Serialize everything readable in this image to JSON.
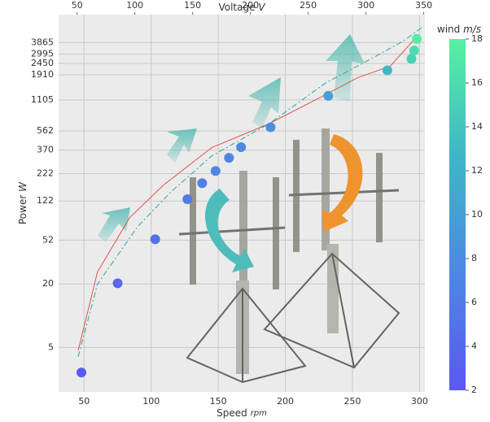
{
  "chart_data": {
    "type": "scatter",
    "x_label": "Speed",
    "x_unit": "rpm",
    "x2_label": "Voltage",
    "x2_unit": "V",
    "y_label": "Power",
    "y_unit": "W",
    "colorbar_label": "wind",
    "colorbar_unit": "m/s",
    "xlim": [
      31,
      304
    ],
    "xticks": [
      50,
      100,
      150,
      200,
      250,
      300
    ],
    "x2lim": [
      34,
      351
    ],
    "x2ticks": [
      50,
      100,
      150,
      200,
      250,
      300,
      350
    ],
    "ylim": [
      1.9,
      7100
    ],
    "yscale": "log",
    "yticks": [
      5,
      20,
      52,
      122,
      222,
      370,
      562,
      1105,
      1910,
      2450,
      2995,
      3865
    ],
    "clim": [
      2,
      18
    ],
    "cticks": [
      2,
      4,
      6,
      8,
      10,
      12,
      14,
      16,
      18
    ],
    "colormap": [
      "#5b58f0",
      "#4d88e2",
      "#3fb5c8",
      "#56f2a0"
    ],
    "grid": true,
    "x": [
      48,
      75,
      103,
      127,
      138,
      148,
      158,
      167,
      189,
      232,
      276,
      294,
      296,
      298
    ],
    "values": [
      2.9,
      20.3,
      53,
      127,
      180,
      235,
      313,
      395,
      610,
      1208,
      2110,
      2710,
      3245,
      4180
    ],
    "wind": [
      2.5,
      4,
      5,
      6,
      6.5,
      7,
      7.2,
      7.5,
      8,
      10,
      13,
      15,
      16,
      17.5
    ],
    "lines": [
      {
        "color": "#e0524a",
        "dash": "solid",
        "x": [
          45.6,
          60,
          84,
          109,
          145,
          188,
          230,
          254,
          278,
          298
        ],
        "values": [
          4.7,
          26,
          85,
          172,
          390,
          660,
          1240,
          1800,
          2300,
          4400
        ]
      },
      {
        "color": "#2aa89a",
        "dash": "dashdot",
        "x": [
          45.6,
          60,
          90,
          115,
          145,
          188,
          230,
          266,
          288,
          303
        ],
        "values": [
          4.1,
          20,
          70,
          150,
          325,
          660,
          1600,
          2800,
          4000,
          5500
        ]
      }
    ]
  }
}
